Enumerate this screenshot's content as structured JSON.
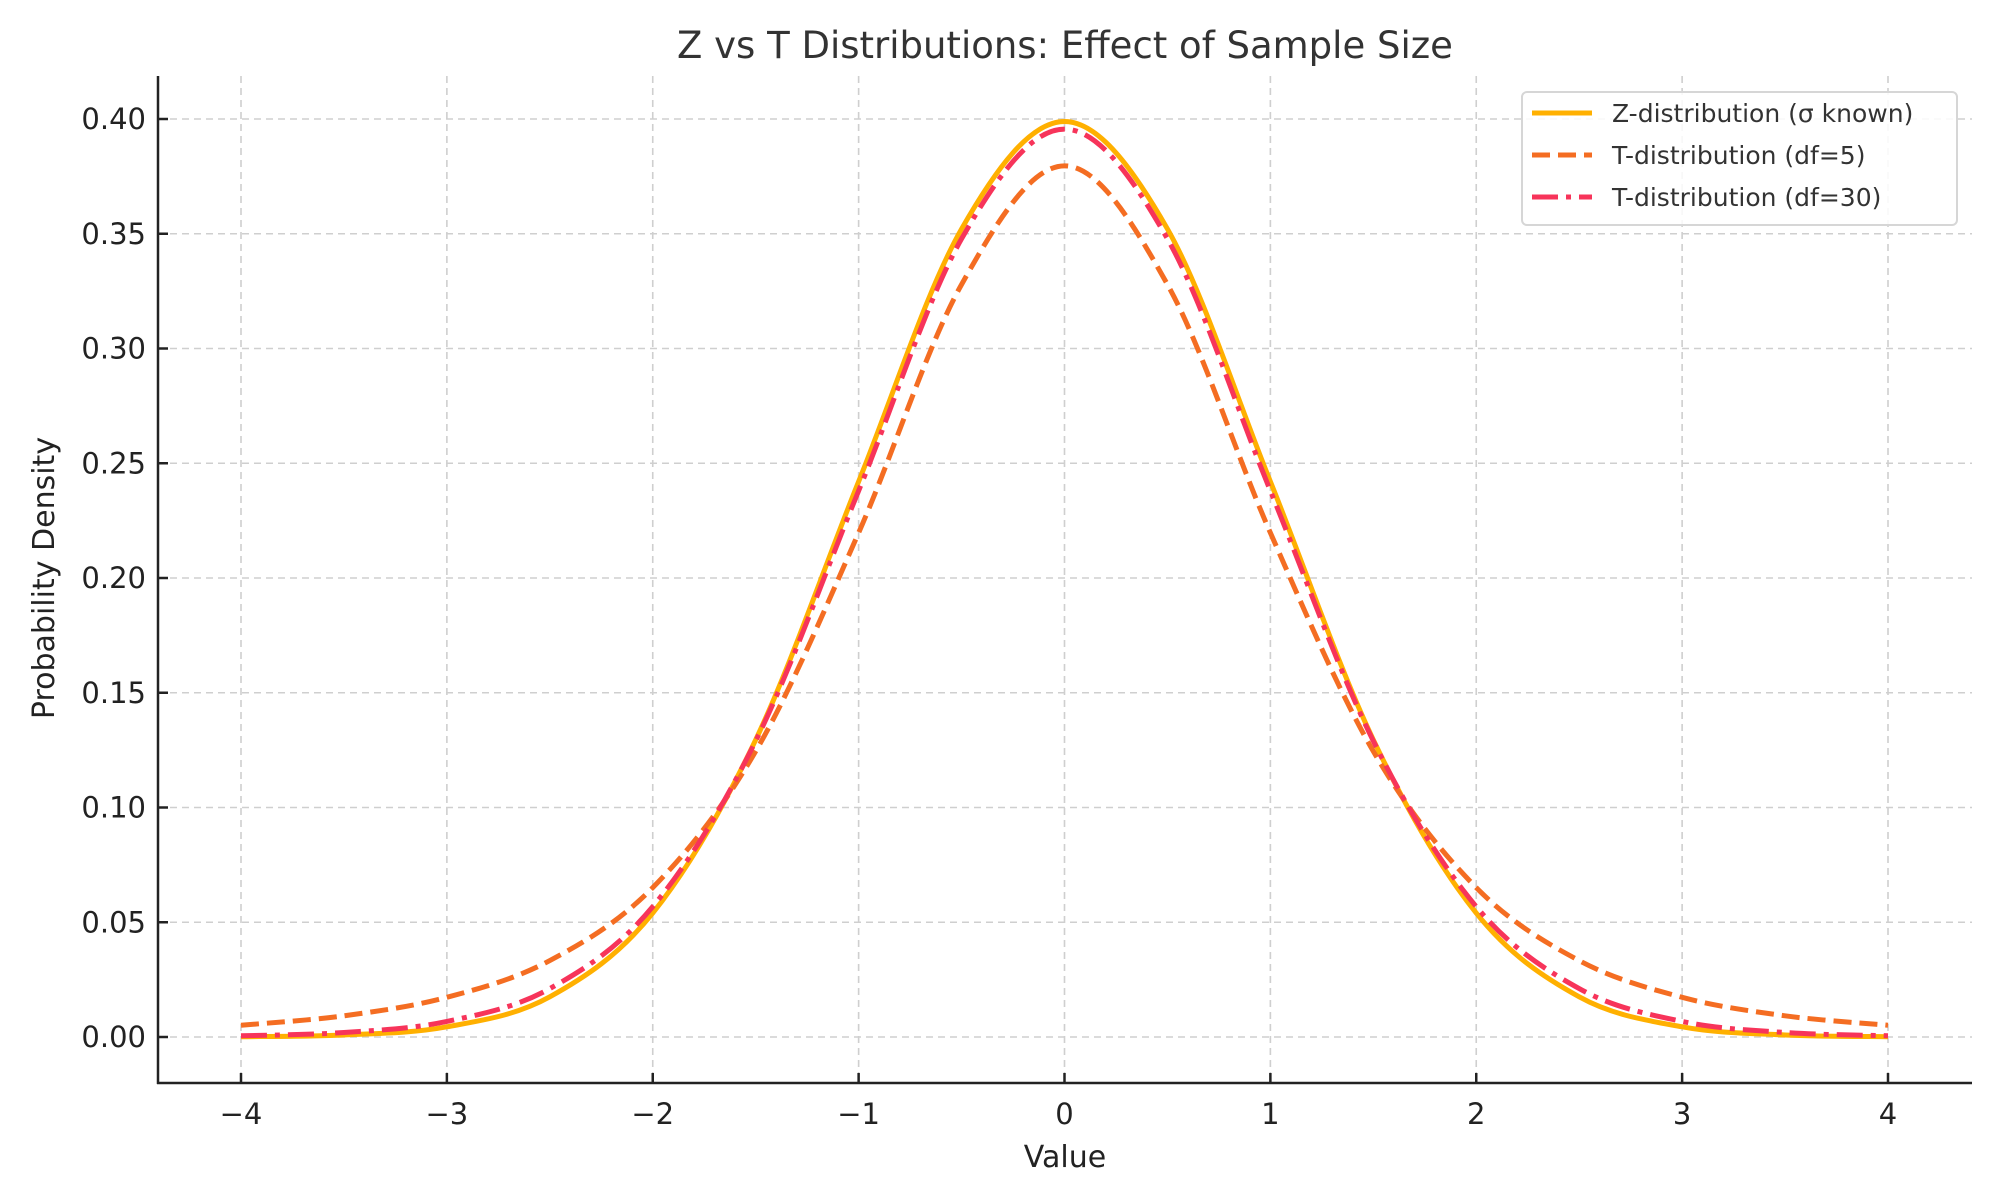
{
  "chart_data": {
    "type": "line",
    "title": "Z vs T Distributions: Effect of Sample Size",
    "xlabel": "Value",
    "ylabel": "Probability Density",
    "xlim": [
      -4.4,
      4.4
    ],
    "ylim": [
      -0.02,
      0.42
    ],
    "xticks": [
      -4,
      -3,
      -2,
      -1,
      0,
      1,
      2,
      3,
      4
    ],
    "xtick_labels": [
      "−4",
      "−3",
      "−2",
      "−1",
      "0",
      "1",
      "2",
      "3",
      "4"
    ],
    "yticks": [
      0.0,
      0.05,
      0.1,
      0.15,
      0.2,
      0.25,
      0.3,
      0.35,
      0.4
    ],
    "ytick_labels": [
      "0.00",
      "0.05",
      "0.10",
      "0.15",
      "0.20",
      "0.25",
      "0.30",
      "0.35",
      "0.40"
    ],
    "grid": true,
    "legend_position": "top-right",
    "x": [
      -4,
      -3.5,
      -3,
      -2.5,
      -2,
      -1.5,
      -1,
      -0.5,
      0,
      0.5,
      1,
      1.5,
      2,
      2.5,
      3,
      3.5,
      4
    ],
    "series": [
      {
        "name": "Z-distribution (σ known)",
        "color": "#ffb000",
        "style": "solid",
        "values": [
          0.000134,
          0.00087,
          0.00443,
          0.0175,
          0.054,
          0.1295,
          0.242,
          0.3521,
          0.3989,
          0.3521,
          0.242,
          0.1295,
          0.054,
          0.0175,
          0.00443,
          0.00087,
          0.000134
        ]
      },
      {
        "name": "T-distribution (df=5)",
        "color": "#f46d22",
        "style": "dashed",
        "values": [
          0.00512,
          0.00924,
          0.0173,
          0.0333,
          0.0651,
          0.1245,
          0.2197,
          0.3279,
          0.3796,
          0.3279,
          0.2197,
          0.1245,
          0.0651,
          0.0333,
          0.0173,
          0.00924,
          0.00512
        ]
      },
      {
        "name": "T-distribution (df=30)",
        "color": "#f7345a",
        "style": "dashdot",
        "values": [
          0.000525,
          0.00196,
          0.00678,
          0.0211,
          0.0568,
          0.129,
          0.238,
          0.3478,
          0.3956,
          0.3478,
          0.238,
          0.129,
          0.0568,
          0.0211,
          0.00678,
          0.00196,
          0.000525
        ]
      }
    ]
  }
}
